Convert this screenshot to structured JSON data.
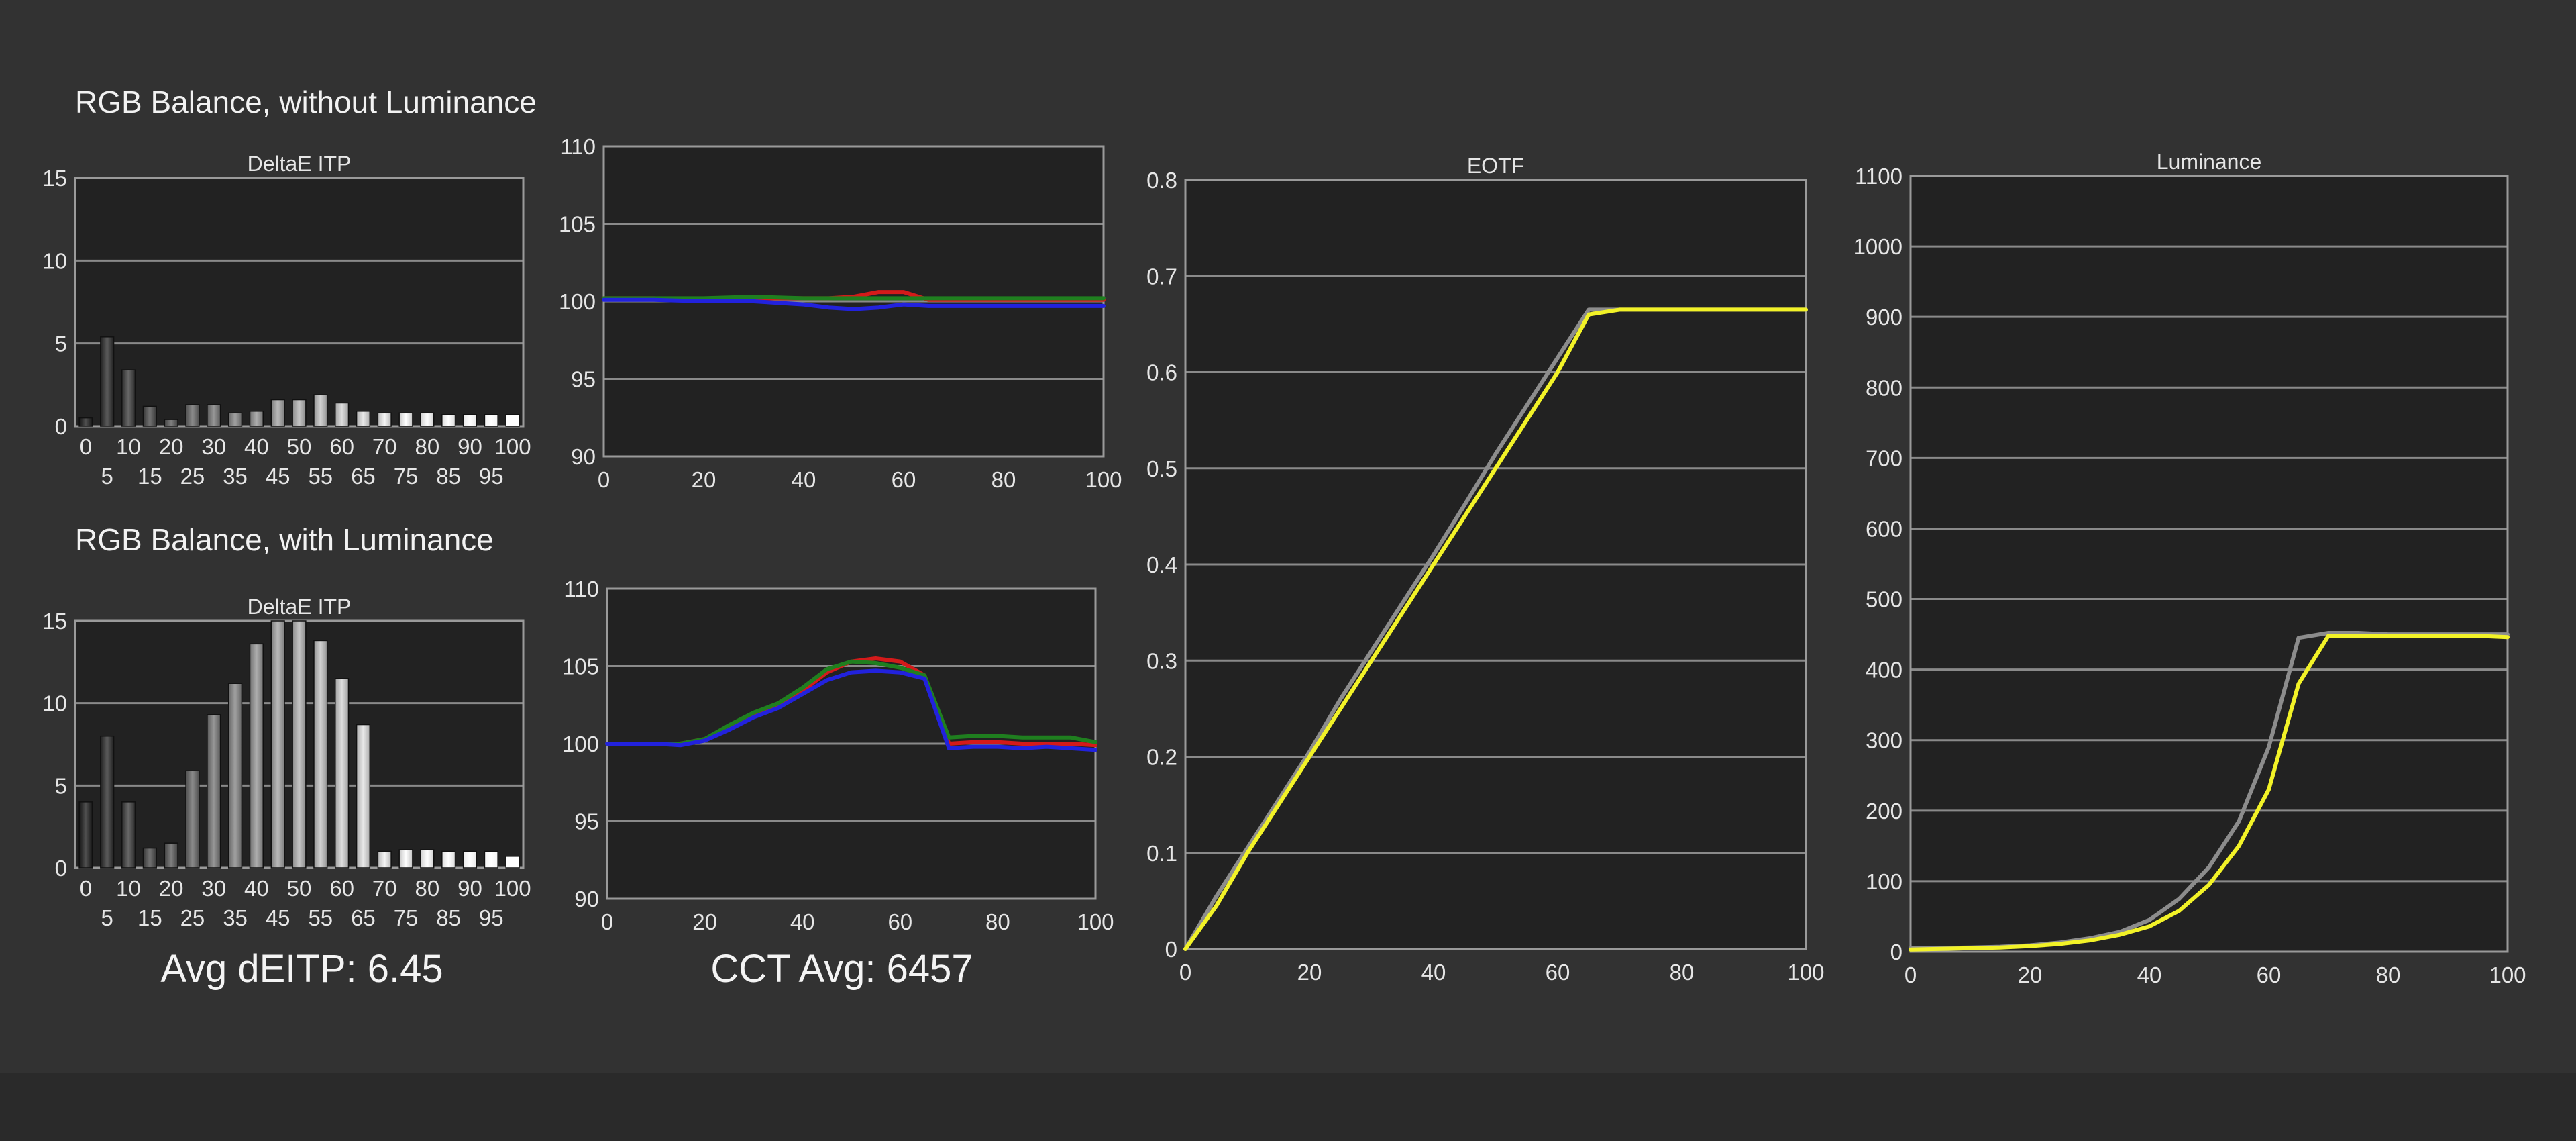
{
  "page": {
    "heading_top": "RGB Balance, without Luminance",
    "heading_bottom": "RGB Balance, with Luminance",
    "avg_deitp": "Avg dEITP: 6.45",
    "cct_avg": "CCT Avg: 6457"
  },
  "colors": {
    "background": "#323232",
    "plot_background": "#222222",
    "grid": "#8a8a8a",
    "red": "#d41a1a",
    "green": "#1f7f1f",
    "blue": "#2222dd",
    "target": "#8c8c8c",
    "measured": "#f2f227"
  },
  "chart_data": [
    {
      "id": "deitp-no-lum",
      "type": "bar",
      "title": "DeltaE ITP",
      "categories": [
        "0",
        "5",
        "10",
        "15",
        "20",
        "25",
        "30",
        "35",
        "40",
        "45",
        "50",
        "55",
        "60",
        "65",
        "70",
        "75",
        "80",
        "85",
        "90",
        "95",
        "100"
      ],
      "values": [
        0.5,
        5.4,
        3.4,
        1.2,
        0.4,
        1.3,
        1.3,
        0.8,
        0.9,
        1.6,
        1.6,
        1.9,
        1.4,
        0.9,
        0.8,
        0.8,
        0.8,
        0.7,
        0.7,
        0.7,
        0.7
      ],
      "ylim": [
        0,
        15
      ],
      "yticks": [
        "0",
        "5",
        "10",
        "15"
      ]
    },
    {
      "id": "rgb-no-lum",
      "type": "line",
      "title": "",
      "x": [
        0,
        10,
        20,
        30,
        40,
        45,
        50,
        55,
        60,
        65,
        70,
        80,
        90,
        100
      ],
      "series": [
        {
          "color": "#d41a1a",
          "values": [
            100.2,
            100.2,
            100.1,
            100.2,
            100.2,
            100.2,
            100.3,
            100.6,
            100.6,
            100.1,
            100.1,
            100.1,
            100.1,
            100.1
          ]
        },
        {
          "color": "#1f7f1f",
          "values": [
            100.2,
            100.2,
            100.2,
            100.3,
            100.2,
            100.2,
            100.2,
            100.2,
            100.2,
            100.2,
            100.2,
            100.2,
            100.2,
            100.2
          ]
        },
        {
          "color": "#2222dd",
          "values": [
            100.1,
            100.1,
            100.0,
            100.0,
            99.8,
            99.6,
            99.5,
            99.6,
            99.8,
            99.7,
            99.7,
            99.7,
            99.7,
            99.7
          ]
        }
      ],
      "xlim": [
        0,
        100
      ],
      "ylim": [
        90,
        110
      ],
      "xticks": [
        "0",
        "20",
        "40",
        "60",
        "80",
        "100"
      ],
      "yticks": [
        "90",
        "95",
        "100",
        "105",
        "110"
      ]
    },
    {
      "id": "deitp-lum",
      "type": "bar",
      "title": "DeltaE ITP",
      "categories": [
        "0",
        "5",
        "10",
        "15",
        "20",
        "25",
        "30",
        "35",
        "40",
        "45",
        "50",
        "55",
        "60",
        "65",
        "70",
        "75",
        "80",
        "85",
        "90",
        "95",
        "100"
      ],
      "values": [
        4.0,
        8.0,
        4.0,
        1.2,
        1.5,
        5.9,
        9.3,
        11.2,
        13.6,
        15.2,
        15.2,
        13.8,
        11.5,
        8.7,
        1.0,
        1.1,
        1.1,
        1.0,
        1.0,
        1.0,
        0.7
      ],
      "ylim": [
        0,
        15
      ],
      "yticks": [
        "0",
        "5",
        "10",
        "15"
      ]
    },
    {
      "id": "rgb-lum",
      "type": "line",
      "title": "",
      "x": [
        0,
        10,
        15,
        20,
        25,
        30,
        35,
        40,
        45,
        50,
        55,
        60,
        65,
        70,
        75,
        80,
        85,
        90,
        95,
        100
      ],
      "series": [
        {
          "color": "#d41a1a",
          "values": [
            100.0,
            100.0,
            100.0,
            100.3,
            101.0,
            101.8,
            102.4,
            103.4,
            104.6,
            105.3,
            105.5,
            105.3,
            104.4,
            100.0,
            100.1,
            100.1,
            100.0,
            100.0,
            100.0,
            99.9
          ]
        },
        {
          "color": "#1f7f1f",
          "values": [
            100.0,
            100.0,
            100.0,
            100.3,
            101.2,
            102.0,
            102.6,
            103.6,
            104.8,
            105.3,
            105.2,
            104.9,
            104.4,
            100.4,
            100.5,
            100.5,
            100.4,
            100.4,
            100.4,
            100.1
          ]
        },
        {
          "color": "#2222dd",
          "values": [
            100.0,
            100.0,
            99.9,
            100.2,
            100.9,
            101.7,
            102.3,
            103.2,
            104.1,
            104.6,
            104.7,
            104.6,
            104.2,
            99.7,
            99.8,
            99.8,
            99.7,
            99.8,
            99.7,
            99.6
          ]
        }
      ],
      "xlim": [
        0,
        100
      ],
      "ylim": [
        90,
        110
      ],
      "xticks": [
        "0",
        "20",
        "40",
        "60",
        "80",
        "100"
      ],
      "yticks": [
        "90",
        "95",
        "100",
        "105",
        "110"
      ]
    },
    {
      "id": "eotf",
      "type": "line",
      "title": "EOTF",
      "x": [
        0,
        5,
        10,
        15,
        20,
        25,
        30,
        35,
        40,
        45,
        50,
        55,
        60,
        65,
        70,
        75,
        80,
        85,
        90,
        95,
        100
      ],
      "series": [
        {
          "color": "#8c8c8c",
          "values": [
            0.0,
            0.055,
            0.105,
            0.155,
            0.205,
            0.26,
            0.31,
            0.36,
            0.41,
            0.462,
            0.515,
            0.565,
            0.615,
            0.665,
            0.665,
            0.665,
            0.665,
            0.665,
            0.665,
            0.665,
            0.665
          ]
        },
        {
          "color": "#f2f227",
          "values": [
            0.0,
            0.045,
            0.1,
            0.15,
            0.2,
            0.25,
            0.3,
            0.35,
            0.4,
            0.45,
            0.5,
            0.55,
            0.6,
            0.66,
            0.665,
            0.665,
            0.665,
            0.665,
            0.665,
            0.665,
            0.665
          ]
        }
      ],
      "xlim": [
        0,
        100
      ],
      "ylim": [
        0,
        0.8
      ],
      "xticks": [
        "0",
        "20",
        "40",
        "60",
        "80",
        "100"
      ],
      "yticks": [
        "0",
        "0.1",
        "0.2",
        "0.3",
        "0.4",
        "0.5",
        "0.6",
        "0.7",
        "0.8"
      ]
    },
    {
      "id": "luminance",
      "type": "line",
      "title": "Luminance",
      "x": [
        0,
        5,
        10,
        15,
        20,
        25,
        30,
        35,
        40,
        45,
        50,
        55,
        60,
        65,
        70,
        75,
        80,
        85,
        90,
        95,
        100
      ],
      "series": [
        {
          "color": "#8c8c8c",
          "values": [
            5,
            5,
            6,
            7,
            9,
            13,
            19,
            28,
            45,
            75,
            120,
            185,
            290,
            445,
            452,
            452,
            450,
            450,
            450,
            450,
            450
          ]
        },
        {
          "color": "#f2f227",
          "values": [
            3,
            4,
            5,
            6,
            8,
            11,
            16,
            24,
            36,
            58,
            95,
            150,
            230,
            380,
            448,
            448,
            448,
            448,
            448,
            448,
            446
          ]
        }
      ],
      "xlim": [
        0,
        100
      ],
      "ylim": [
        0,
        1100
      ],
      "xticks": [
        "0",
        "20",
        "40",
        "60",
        "80",
        "100"
      ],
      "yticks": [
        "0",
        "100",
        "200",
        "300",
        "400",
        "500",
        "600",
        "700",
        "800",
        "900",
        "1000",
        "1100"
      ]
    }
  ]
}
